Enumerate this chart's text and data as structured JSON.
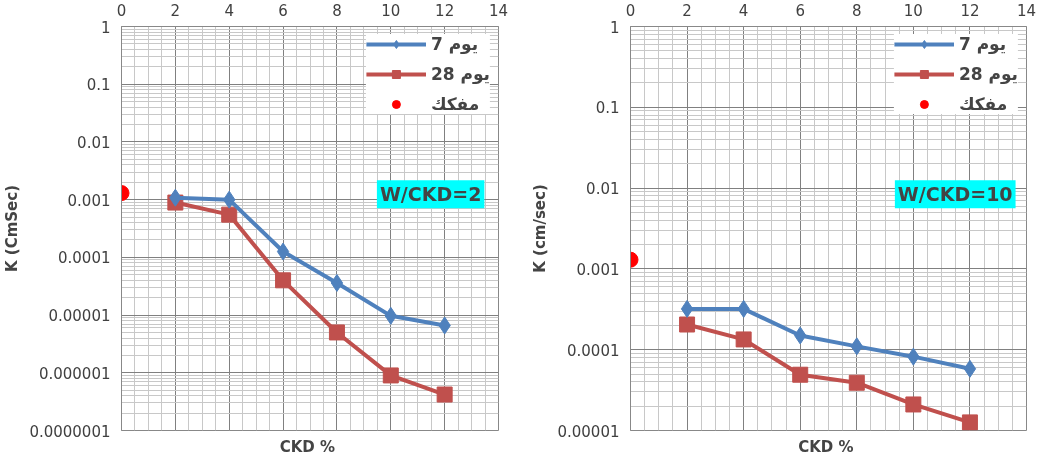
{
  "chart_data": [
    {
      "type": "line",
      "xlabel": "CKD  %",
      "ylabel": "K (CmSec)",
      "x": [
        2,
        4,
        6,
        8,
        10,
        12
      ],
      "xlim": [
        0,
        14
      ],
      "xticks": [
        0,
        2,
        4,
        6,
        8,
        10,
        12,
        14
      ],
      "ylim": [
        1e-07,
        1
      ],
      "yticks": [
        {
          "value": 1e-07,
          "label": "0.0000001"
        },
        {
          "value": 1e-06,
          "label": "0.000001"
        },
        {
          "value": 1e-05,
          "label": "0.00001"
        },
        {
          "value": 0.0001,
          "label": "0.0001"
        },
        0.001,
        0.01,
        0.1,
        1
      ],
      "log": "y",
      "grid": true,
      "legend": "top right",
      "annotations": [
        "W/CKD=2"
      ],
      "series": [
        {
          "name": "7 يوم",
          "color": "#4f81bd",
          "marker": "diamond",
          "values": [
            0.00108,
            0.001,
            0.000126,
            3.6e-05,
            9.7e-06,
            6.6e-06
          ]
        },
        {
          "name": "28 يوم",
          "color": "#c0504d",
          "marker": "square",
          "values": [
            0.00089,
            0.00055,
            4e-05,
            5e-06,
            9e-07,
            4.2e-07
          ]
        },
        {
          "name": "مفكك",
          "type": "scatter",
          "color": "#ff0000",
          "marker": "circle",
          "x": [
            0
          ],
          "values": [
            0.0013
          ]
        }
      ]
    },
    {
      "type": "line",
      "xlabel": "CKD  %",
      "ylabel": "K (cm/sec)",
      "x": [
        2,
        4,
        6,
        8,
        10,
        12
      ],
      "xlim": [
        0,
        14
      ],
      "xticks": [
        0,
        2,
        4,
        6,
        8,
        10,
        12,
        14
      ],
      "ylim": [
        1e-05,
        1
      ],
      "yticks": [
        {
          "value": 1e-05,
          "label": "0.00001"
        },
        {
          "value": 0.0001,
          "label": "0.0001"
        },
        0.001,
        0.01,
        0.1,
        1
      ],
      "log": "y",
      "grid": true,
      "legend": "top right",
      "annotations": [
        "W/CKD=10"
      ],
      "series": [
        {
          "name": "7 يوم",
          "color": "#4f81bd",
          "marker": "diamond",
          "values": [
            0.00032,
            0.00032,
            0.00015,
            0.00011,
            8.2e-05,
            5.8e-05
          ]
        },
        {
          "name": "28 يوم",
          "color": "#c0504d",
          "marker": "square",
          "values": [
            0.000205,
            0.000134,
            4.9e-05,
            3.9e-05,
            2.1e-05,
            1.26e-05
          ]
        },
        {
          "name": "مفكك",
          "type": "scatter",
          "color": "#ff0000",
          "marker": "circle",
          "x": [
            0
          ],
          "values": [
            0.0013
          ]
        }
      ]
    }
  ]
}
